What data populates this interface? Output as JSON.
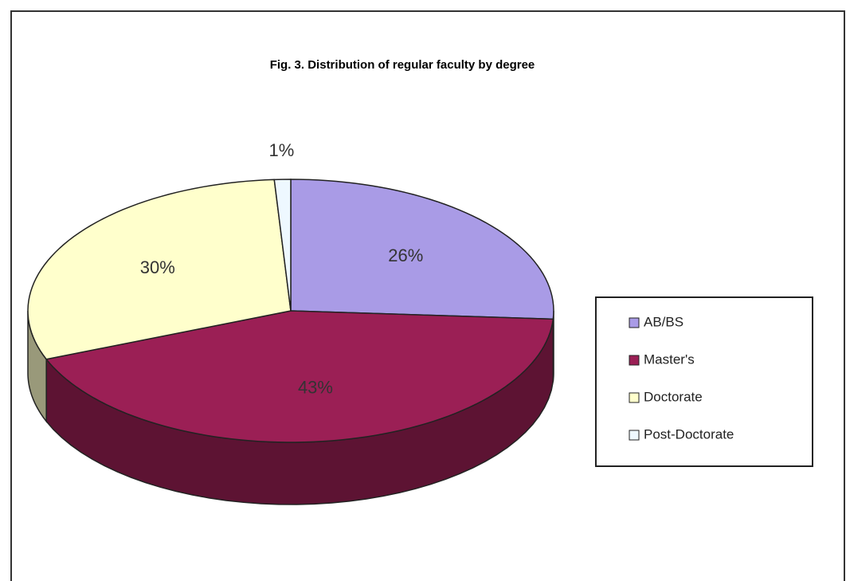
{
  "chart_data": {
    "type": "pie",
    "title": "Fig. 3. Distribution of regular faculty by degree",
    "categories": [
      "AB/BS",
      "Master's",
      "Doctorate",
      "Post-Doctorate"
    ],
    "values": [
      26,
      43,
      30,
      1
    ],
    "value_labels": [
      "26%",
      "43%",
      "30%",
      "1%"
    ],
    "colors": [
      "#a99be6",
      "#9b1f55",
      "#ffffcc",
      "#eef8ff"
    ],
    "legend": "right"
  }
}
